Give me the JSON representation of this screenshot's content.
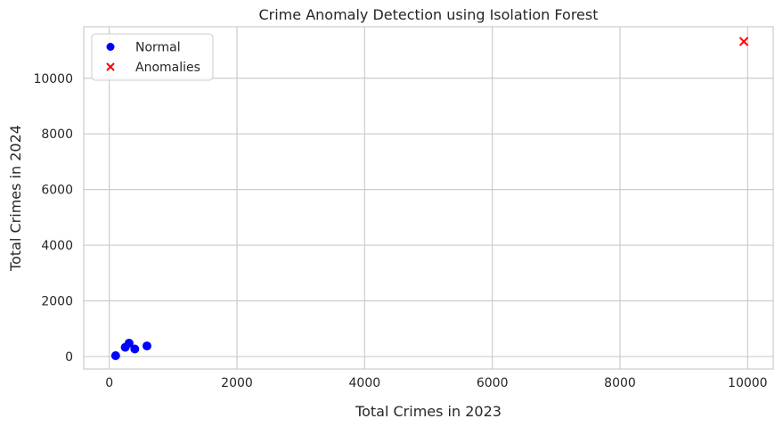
{
  "chart_data": {
    "type": "scatter",
    "title": "Crime Anomaly Detection using Isolation Forest",
    "xlabel": "Total Crimes in 2023",
    "ylabel": "Total Crimes in 2024",
    "xlim": [
      -400,
      10400
    ],
    "ylim": [
      -450,
      11850
    ],
    "xticks": [
      0,
      2000,
      4000,
      6000,
      8000,
      10000
    ],
    "yticks": [
      0,
      2000,
      4000,
      6000,
      8000,
      10000
    ],
    "xtick_labels": [
      "0",
      "2000",
      "4000",
      "6000",
      "8000",
      "10000"
    ],
    "ytick_labels": [
      "0",
      "2000",
      "4000",
      "6000",
      "8000",
      "10000"
    ],
    "grid": true,
    "legend_position": "top-left",
    "series": [
      {
        "name": "Normal",
        "marker": "circle",
        "color": "#0000ff",
        "points": [
          {
            "x": 100,
            "y": 30
          },
          {
            "x": 250,
            "y": 330
          },
          {
            "x": 310,
            "y": 480
          },
          {
            "x": 400,
            "y": 270
          },
          {
            "x": 590,
            "y": 380
          }
        ]
      },
      {
        "name": "Anomalies",
        "marker": "x",
        "color": "#ff0000",
        "points": [
          {
            "x": 9940,
            "y": 11320
          }
        ]
      }
    ]
  }
}
